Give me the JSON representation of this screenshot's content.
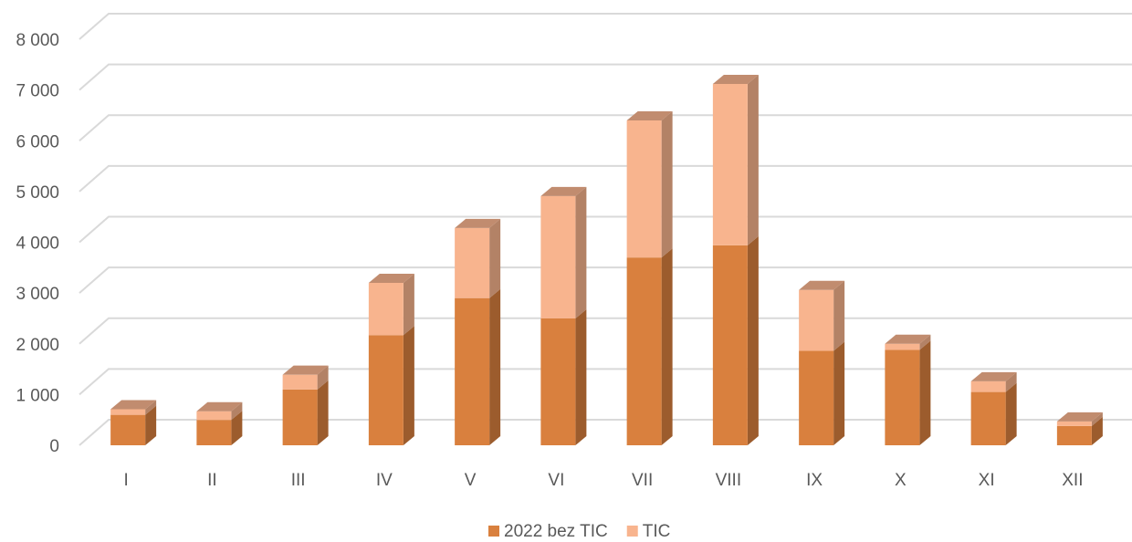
{
  "chart_data": {
    "type": "bar",
    "stacked": true,
    "style": "3d",
    "categories": [
      "I",
      "II",
      "III",
      "IV",
      "V",
      "VI",
      "VII",
      "VIII",
      "IX",
      "X",
      "XI",
      "XII"
    ],
    "series": [
      {
        "name": "2022 bez TIC",
        "color": "#D9803E",
        "values": [
          600,
          500,
          1100,
          2170,
          2900,
          2500,
          3700,
          3940,
          1860,
          1880,
          1050,
          380
        ]
      },
      {
        "name": "TIC",
        "color": "#F8B48E",
        "values": [
          110,
          170,
          290,
          1030,
          1380,
          2410,
          2700,
          3180,
          1200,
          120,
          210,
          90
        ]
      }
    ],
    "y_tick_labels": [
      "0",
      "1 000",
      "2 000",
      "3 000",
      "4 000",
      "5 000",
      "6 000",
      "7 000",
      "8 000"
    ],
    "ylim": [
      0,
      8000
    ],
    "grid": true,
    "legend_position": "bottom"
  }
}
